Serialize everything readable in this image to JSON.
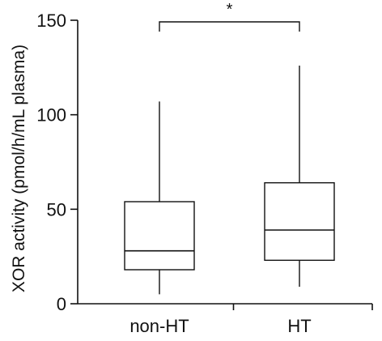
{
  "chart_data": {
    "type": "box",
    "title": "",
    "xlabel": "",
    "ylabel": "XOR activity (pmol/h/mL plasma)",
    "ylim": [
      0,
      150
    ],
    "yticks": [
      0,
      50,
      100,
      150
    ],
    "grid": false,
    "categories": [
      "non-HT",
      "HT"
    ],
    "boxes": [
      {
        "category": "non-HT",
        "whisker_low": 5,
        "q1": 18,
        "median": 28,
        "q3": 54,
        "whisker_high": 107
      },
      {
        "category": "HT",
        "whisker_low": 9,
        "q1": 23,
        "median": 39,
        "q3": 64,
        "whisker_high": 126
      }
    ],
    "significance": {
      "label": "*",
      "from": "non-HT",
      "to": "HT"
    },
    "colors": {
      "stroke": "#111111",
      "fill": "#ffffff"
    }
  }
}
